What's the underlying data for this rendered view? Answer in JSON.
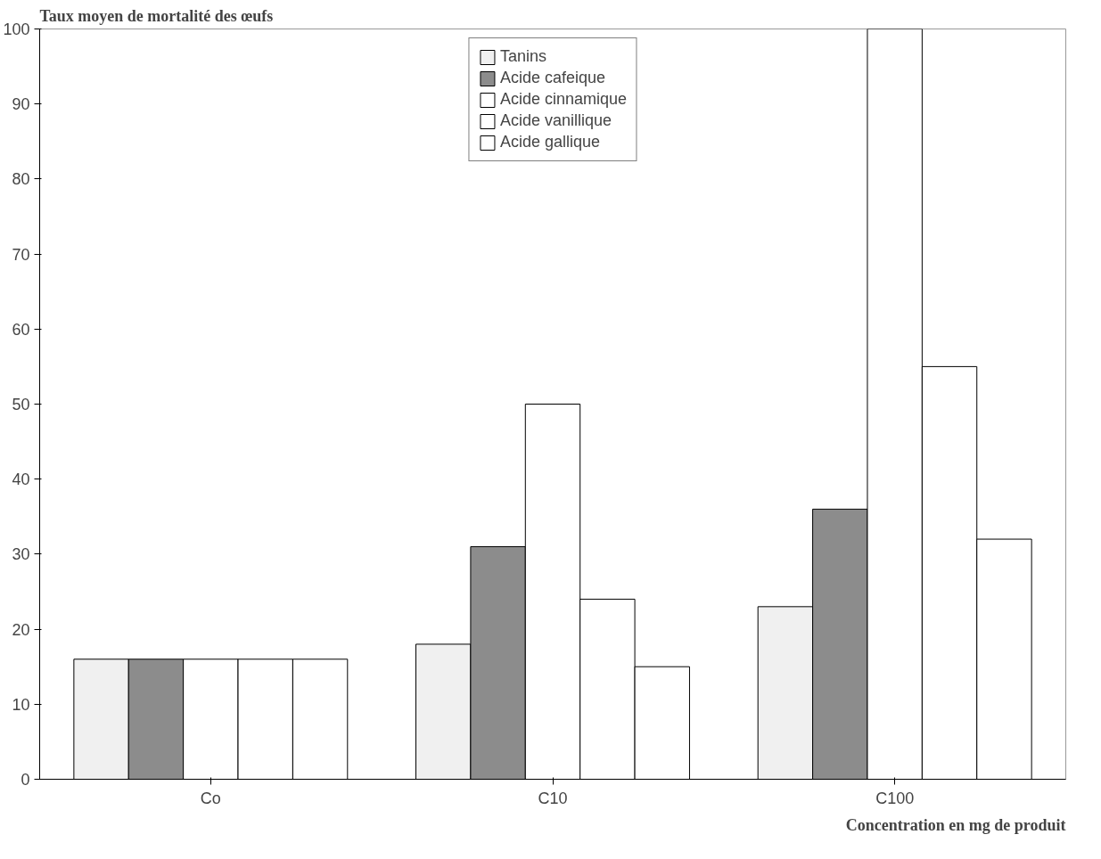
{
  "chart_data": {
    "type": "bar",
    "ylabel": "Taux moyen de mortalité des œufs",
    "xlabel": "Concentration en mg de produit",
    "categories": [
      "Co",
      "C10",
      "C100"
    ],
    "series": [
      {
        "name": "Tanins",
        "color": "#f0f0f0",
        "values": [
          16,
          18,
          23
        ]
      },
      {
        "name": "Acide cafeique",
        "color": "#8c8c8c",
        "values": [
          16,
          31,
          36
        ]
      },
      {
        "name": "Acide cinnamique",
        "color": "#ffffff",
        "values": [
          16,
          50,
          100
        ]
      },
      {
        "name": "Acide vanillique",
        "color": "#ffffff",
        "values": [
          16,
          24,
          55
        ]
      },
      {
        "name": "Acide gallique",
        "color": "#ffffff",
        "values": [
          16,
          15,
          32
        ]
      }
    ],
    "ylim": [
      0,
      100
    ],
    "yticks": [
      0,
      10,
      20,
      30,
      40,
      50,
      60,
      70,
      80,
      90,
      100
    ],
    "grid": false,
    "legend": "top"
  }
}
